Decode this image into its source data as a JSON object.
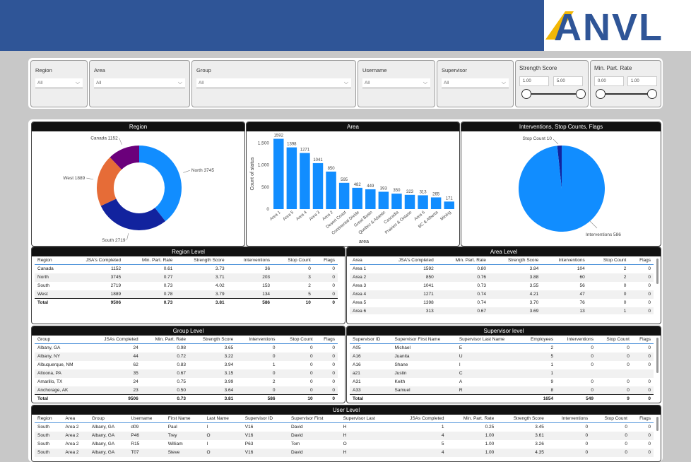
{
  "header": {
    "logo_text": "ANVL"
  },
  "slicers": {
    "region": {
      "label": "Region",
      "value": "All"
    },
    "area": {
      "label": "Area",
      "value": "All"
    },
    "group": {
      "label": "Group",
      "value": "All"
    },
    "username": {
      "label": "Username",
      "value": "All"
    },
    "supervisor": {
      "label": "Supervisor",
      "value": "All"
    },
    "strength": {
      "label": "Strength Score",
      "min": "1.00",
      "max": "5.00"
    },
    "minpart": {
      "label": "Min. Part. Rate",
      "min": "0.00",
      "max": "1.00"
    }
  },
  "panels": {
    "region_title": "Region",
    "area_title": "Area",
    "interventions_title": "Interventions, Stop Counts, Flags",
    "region_level_title": "Region Level",
    "area_level_title": "Area Level",
    "group_level_title": "Group Level",
    "supervisor_level_title": "Supervisor level",
    "user_level_title": "User Level"
  },
  "chart_data": [
    {
      "type": "pie",
      "title": "Region",
      "donut": true,
      "categories": [
        "North",
        "South",
        "West",
        "Canada"
      ],
      "values": [
        3745,
        2719,
        1889,
        1152
      ],
      "labels": [
        "North 3745",
        "South 2719",
        "West 1889",
        "Canada 1152"
      ],
      "colors": [
        "#118dff",
        "#12239e",
        "#e66c37",
        "#6b007b"
      ]
    },
    {
      "type": "bar",
      "title": "Area",
      "xlabel": "area",
      "ylabel": "Count of status",
      "ylim": [
        0,
        1600
      ],
      "yticks": [
        "0",
        "500",
        "1,000",
        "1,500"
      ],
      "categories": [
        "Area 1",
        "Area 5",
        "Area 4",
        "Area 3",
        "Area 2",
        "Desert Coast",
        "Continental Divide",
        "Great Basin",
        "Quebec & Atlantic",
        "Cascadia",
        "Prairies & Ontario",
        "Area 6",
        "BC & Alberta",
        "Mining"
      ],
      "values": [
        1592,
        1398,
        1271,
        1041,
        850,
        595,
        482,
        449,
        393,
        350,
        323,
        313,
        265,
        171
      ],
      "color": "#118dff"
    },
    {
      "type": "pie",
      "title": "Interventions, Stop Counts, Flags",
      "categories": [
        "Interventions",
        "Stop Count",
        "Flags"
      ],
      "values": [
        586,
        10,
        0
      ],
      "labels": [
        "Interventions 586",
        "Stop Count 10"
      ],
      "colors": [
        "#118dff",
        "#12239e",
        "#e66c37"
      ]
    }
  ],
  "region_level": {
    "columns": [
      "Region",
      "JSA's Completed",
      "Min. Part. Rate",
      "Strength Score",
      "Interventions",
      "Stop Count",
      "Flags"
    ],
    "rows": [
      [
        "Canada",
        "1152",
        "0.61",
        "3.73",
        "36",
        "0",
        "0"
      ],
      [
        "North",
        "3745",
        "0.77",
        "3.71",
        "203",
        "3",
        "0"
      ],
      [
        "South",
        "2719",
        "0.73",
        "4.02",
        "153",
        "2",
        "0"
      ],
      [
        "West",
        "1889",
        "0.78",
        "3.79",
        "134",
        "5",
        "0"
      ]
    ],
    "total": [
      "Total",
      "9506",
      "0.73",
      "3.81",
      "586",
      "10",
      "0"
    ]
  },
  "area_level": {
    "columns": [
      "Area",
      "JSA's Completed",
      "Min. Part. Rate",
      "Strength Score",
      "Interventions",
      "Stop Count",
      "Flags"
    ],
    "rows": [
      [
        "Area 1",
        "1592",
        "0.80",
        "3.84",
        "104",
        "2",
        "0"
      ],
      [
        "Area 2",
        "850",
        "0.76",
        "3.88",
        "60",
        "2",
        "0"
      ],
      [
        "Area 3",
        "1041",
        "0.73",
        "3.55",
        "56",
        "0",
        "0"
      ],
      [
        "Area 4",
        "1271",
        "0.74",
        "4.21",
        "47",
        "0",
        "0"
      ],
      [
        "Area 5",
        "1398",
        "0.74",
        "3.70",
        "76",
        "0",
        "0"
      ],
      [
        "Area 6",
        "313",
        "0.67",
        "3.69",
        "13",
        "1",
        "0"
      ]
    ],
    "total": [
      "Total",
      "9506",
      "0.73",
      "3.81",
      "586",
      "10",
      "0"
    ]
  },
  "group_level": {
    "columns": [
      "Group",
      "JSAs Completed",
      "Min. Part. Rate",
      "Strength Score",
      "Interventions",
      "Stop Count",
      "Flags"
    ],
    "rows": [
      [
        "Albany, GA",
        "24",
        "0.98",
        "3.65",
        "0",
        "0",
        "0"
      ],
      [
        "Albany, NY",
        "44",
        "0.72",
        "3.22",
        "0",
        "0",
        "0"
      ],
      [
        "Albuquerque, NM",
        "62",
        "0.83",
        "3.94",
        "1",
        "0",
        "0"
      ],
      [
        "Altoona, PA",
        "35",
        "0.67",
        "3.15",
        "0",
        "0",
        "0"
      ],
      [
        "Amarillo, TX",
        "24",
        "0.75",
        "3.99",
        "2",
        "0",
        "0"
      ],
      [
        "Anchorage, AK",
        "23",
        "0.50",
        "3.64",
        "0",
        "0",
        "0"
      ]
    ],
    "total": [
      "Total",
      "9506",
      "0.73",
      "3.81",
      "586",
      "10",
      "0"
    ]
  },
  "supervisor_level": {
    "columns": [
      "Supervisor ID",
      "Supervisor First Name",
      "Supervisor Last Name",
      "Employees",
      "Interventions",
      "Stop Count",
      "Flags"
    ],
    "rows": [
      [
        "A05",
        "Michael",
        "E",
        "2",
        "0",
        "0",
        "0"
      ],
      [
        "A16",
        "Juanita",
        "U",
        "5",
        "0",
        "0",
        "0"
      ],
      [
        "A16",
        "Shane",
        "I",
        "1",
        "0",
        "0",
        "0"
      ],
      [
        "a21",
        "Justin",
        "C",
        "1",
        "",
        "",
        ""
      ],
      [
        "A31",
        "Keith",
        "A",
        "9",
        "0",
        "0",
        "0"
      ],
      [
        "A33",
        "Samuel",
        "R",
        "8",
        "0",
        "0",
        "0"
      ]
    ],
    "total": [
      "Total",
      "",
      "",
      "1654",
      "549",
      "9",
      "0"
    ]
  },
  "user_level": {
    "columns": [
      "Region",
      "Area",
      "Group",
      "Username",
      "First Name",
      "Last Name",
      "Supervisor ID",
      "Supervisor First",
      "Supervisor Last",
      "JSAs Completed",
      "Min. Part. Rate",
      "Strength Score",
      "Interventions",
      "Stop Count",
      "Flags"
    ],
    "rows": [
      [
        "South",
        "Area 2",
        "Albany, GA",
        "d09",
        "Paul",
        "I",
        "V16",
        "David",
        "H",
        "1",
        "0.25",
        "3.45",
        "0",
        "0",
        "0"
      ],
      [
        "South",
        "Area 2",
        "Albany, GA",
        "P46",
        "Trey",
        "O",
        "V16",
        "David",
        "H",
        "4",
        "1.00",
        "3.61",
        "0",
        "0",
        "0"
      ],
      [
        "South",
        "Area 2",
        "Albany, GA",
        "R15",
        "William",
        "I",
        "P63",
        "Tom",
        "O",
        "5",
        "1.00",
        "3.26",
        "0",
        "0",
        "0"
      ],
      [
        "South",
        "Area 2",
        "Albany, GA",
        "T07",
        "Steve",
        "O",
        "V16",
        "David",
        "H",
        "4",
        "1.00",
        "4.35",
        "0",
        "0",
        "0"
      ]
    ]
  }
}
